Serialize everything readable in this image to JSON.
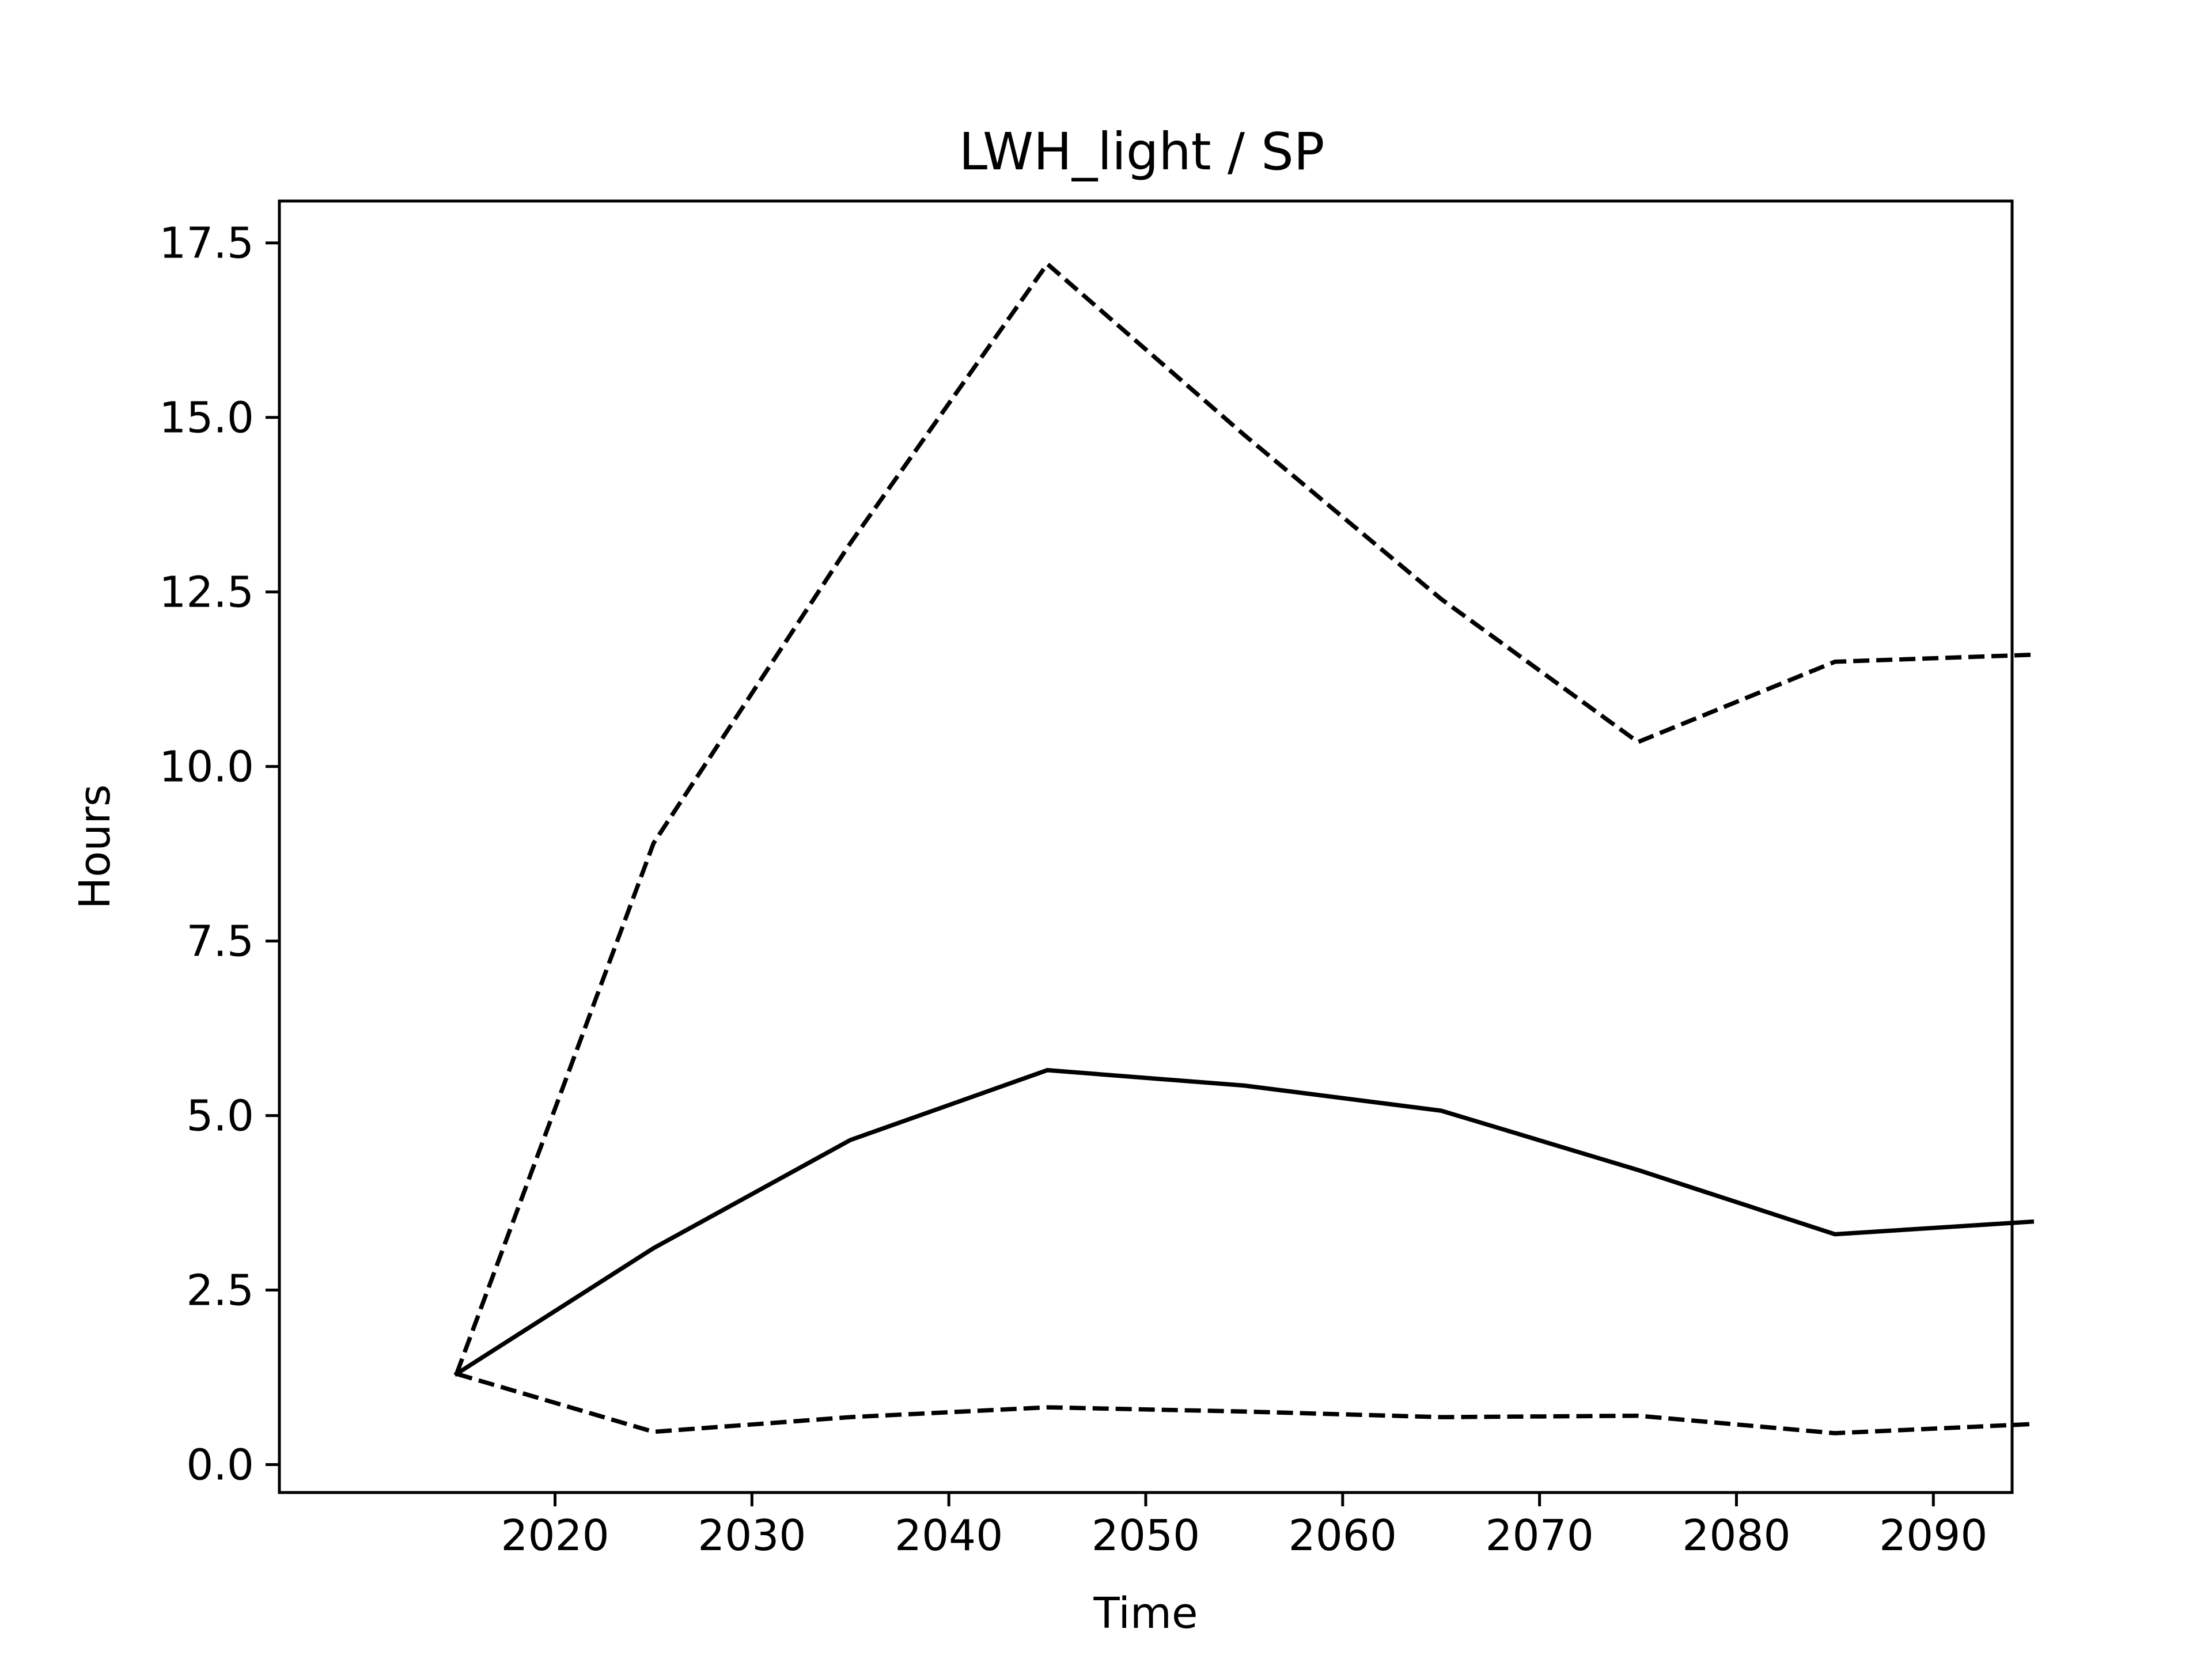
{
  "chart_data": {
    "type": "line",
    "title": "LWH_light / SP",
    "xlabel": "Time",
    "ylabel": "Hours",
    "x": [
      2015,
      2025,
      2035,
      2045,
      2055,
      2065,
      2075,
      2085,
      2095
    ],
    "xlim": [
      2006,
      2094
    ],
    "ylim": [
      -0.4,
      18.1
    ],
    "xticks": [
      2020,
      2030,
      2040,
      2050,
      2060,
      2070,
      2080,
      2090
    ],
    "xtick_labels": [
      "2020",
      "2030",
      "2040",
      "2050",
      "2060",
      "2070",
      "2080",
      "2090"
    ],
    "yticks": [
      0.0,
      2.5,
      5.0,
      7.5,
      10.0,
      12.5,
      15.0,
      17.5
    ],
    "ytick_labels": [
      "0.0",
      "2.5",
      "5.0",
      "7.5",
      "10.0",
      "12.5",
      "15.0",
      "17.5"
    ],
    "grid": false,
    "series": [
      {
        "style": "solid",
        "color": "#000000",
        "values": [
          1.3,
          3.1,
          4.65,
          5.65,
          5.43,
          5.07,
          4.22,
          3.3,
          3.48
        ]
      },
      {
        "style": "dashed",
        "color": "#000000",
        "values": [
          1.3,
          8.9,
          13.2,
          17.2,
          14.75,
          12.4,
          10.35,
          11.5,
          11.6
        ]
      },
      {
        "style": "dashed",
        "color": "#000000",
        "values": [
          1.3,
          0.47,
          0.68,
          0.82,
          0.76,
          0.68,
          0.7,
          0.45,
          0.58
        ]
      }
    ]
  }
}
